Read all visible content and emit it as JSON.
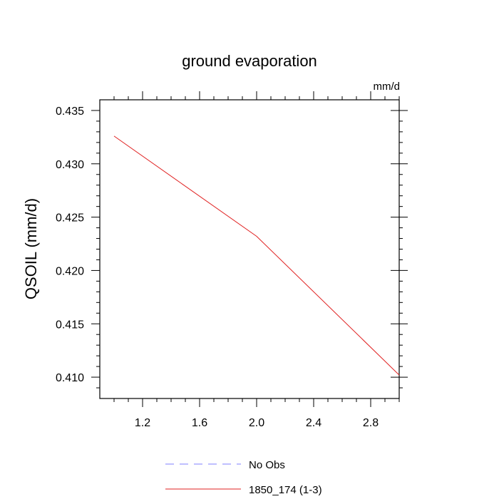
{
  "chart_data": {
    "type": "line",
    "title": "ground evaporation",
    "units_label": "mm/d",
    "ylabel": "QSOIL  (mm/d)",
    "xlabel": "",
    "xlim": [
      0.9,
      3.0
    ],
    "ylim": [
      0.408,
      0.436
    ],
    "x_ticks": [
      1.2,
      1.6,
      2.0,
      2.4,
      2.8
    ],
    "x_tick_labels": [
      "1.2",
      "1.6",
      "2.0",
      "2.4",
      "2.8"
    ],
    "y_ticks": [
      0.41,
      0.415,
      0.42,
      0.425,
      0.43,
      0.435
    ],
    "y_tick_labels": [
      "0.410",
      "0.415",
      "0.420",
      "0.425",
      "0.430",
      "0.435"
    ],
    "grid": false,
    "legend_placement": "bottom",
    "series": [
      {
        "name": "No Obs",
        "color": "#8080ff",
        "dash": true,
        "x": [],
        "y": []
      },
      {
        "name": "1850_174 (1-3)",
        "color": "#e02020",
        "dash": false,
        "x": [
          1.0,
          2.0,
          3.0
        ],
        "y": [
          0.4326,
          0.4232,
          0.4102
        ]
      }
    ]
  }
}
